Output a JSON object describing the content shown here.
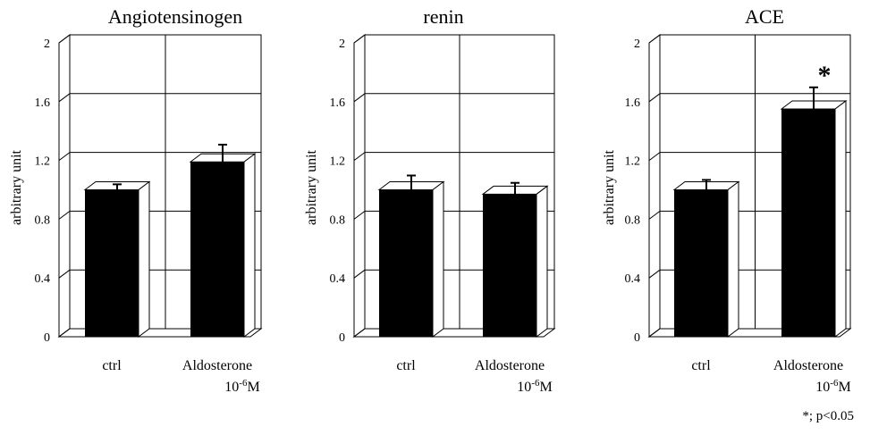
{
  "footnote": "*; p<0.05",
  "chart_data": [
    {
      "type": "bar",
      "title": "Angiotensinogen",
      "ylabel": "arbitrary unit",
      "ylim": [
        0,
        2
      ],
      "yticks": [
        "0",
        "0.4",
        "0.8",
        "1.2",
        "1.6",
        "2"
      ],
      "categories": [
        "ctrl",
        "Aldosterone 10-6M"
      ],
      "values": [
        1.0,
        1.19
      ],
      "errors": [
        0.01,
        0.09
      ],
      "significance": [
        "",
        ""
      ],
      "grid": true
    },
    {
      "type": "bar",
      "title": "renin",
      "ylabel": "arbitrary unit",
      "ylim": [
        0,
        2
      ],
      "yticks": [
        "0",
        "0.4",
        "0.8",
        "1.2",
        "1.6",
        "2"
      ],
      "categories": [
        "ctrl",
        "Aldosterone 10-6M"
      ],
      "values": [
        1.0,
        0.97
      ],
      "errors": [
        0.07,
        0.05
      ],
      "significance": [
        "",
        ""
      ],
      "grid": true
    },
    {
      "type": "bar",
      "title": "ACE",
      "ylabel": "arbitrary unit",
      "ylim": [
        0,
        2
      ],
      "yticks": [
        "0",
        "0.4",
        "0.8",
        "1.2",
        "1.6",
        "2"
      ],
      "categories": [
        "ctrl",
        "Aldosterone 10-6M"
      ],
      "values": [
        1.0,
        1.55
      ],
      "errors": [
        0.04,
        0.12
      ],
      "significance": [
        "",
        "*"
      ],
      "grid": true
    }
  ]
}
